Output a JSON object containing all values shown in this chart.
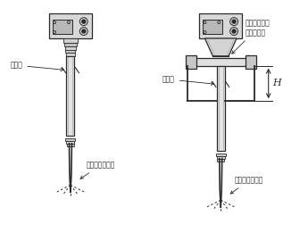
{
  "line_color": "#2a2a2a",
  "gray_fill": "#d8d8d8",
  "mid_gray": "#b8b8b8",
  "dark_gray": "#888888",
  "label1_shield": "屏蔽段",
  "label1_beam": "波束从此处发射",
  "label2_flange": "为翻边法兰使\n用弹性垫片",
  "label2_shield": "屏蔽段",
  "label2_beam": "波束从此处发射",
  "label_H": "H",
  "fig_w": 3.45,
  "fig_h": 2.79,
  "dpi": 100
}
